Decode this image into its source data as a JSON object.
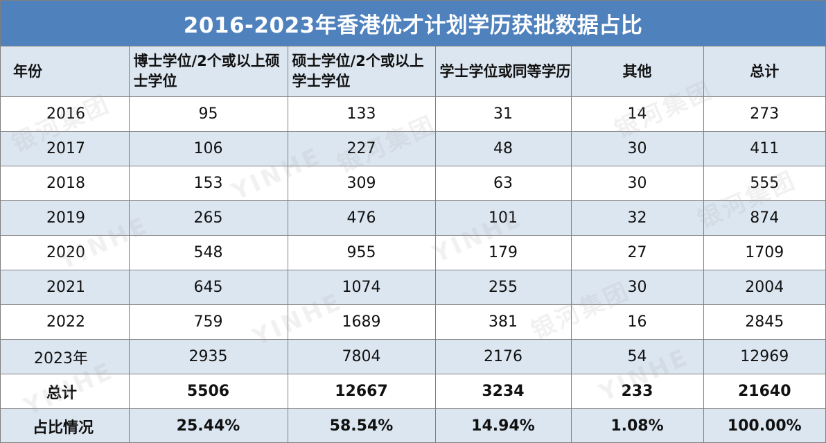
{
  "title": "2016-2023年香港优才计划学历获批数据占比",
  "headers": [
    "年份",
    "博士学位/2个或以上硕士学位",
    "硕士学位/2个或以上学士学位",
    "学士学位或同等学历",
    "其他",
    "总计"
  ],
  "rows": [
    [
      "2016",
      "95",
      "133",
      "31",
      "14",
      "273"
    ],
    [
      "2017",
      "106",
      "227",
      "48",
      "30",
      "411"
    ],
    [
      "2018",
      "153",
      "309",
      "63",
      "30",
      "555"
    ],
    [
      "2019",
      "265",
      "476",
      "101",
      "32",
      "874"
    ],
    [
      "2020",
      "548",
      "955",
      "179",
      "27",
      "1709"
    ],
    [
      "2021",
      "645",
      "1074",
      "255",
      "30",
      "2004"
    ],
    [
      "2022",
      "759",
      "1689",
      "381",
      "16",
      "2845"
    ],
    [
      "2023年",
      "2935",
      "7804",
      "2176",
      "54",
      "12969"
    ]
  ],
  "total_row": [
    "总计",
    "5506",
    "12667",
    "3234",
    "233",
    "21640"
  ],
  "ratio_row": [
    "占比情况",
    "25.44%",
    "58.54%",
    "14.94%",
    "1.08%",
    "100.00%"
  ],
  "watermark": {
    "latin": "YINHE",
    "cjk": "银河集团"
  },
  "colors": {
    "header_fill": "#4f81bd",
    "band_fill": "#dce6f1",
    "grid": "#7f7f7f"
  }
}
